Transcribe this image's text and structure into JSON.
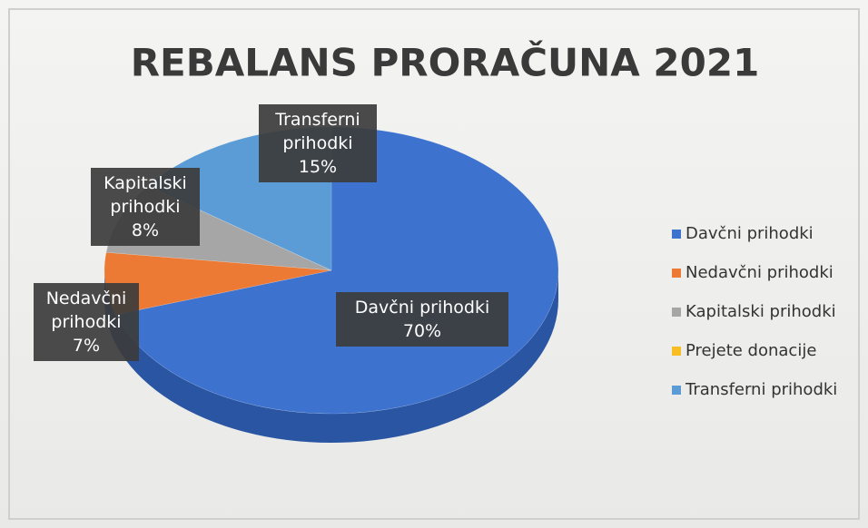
{
  "chart_data": {
    "type": "pie",
    "title": "REBALANS PRORAČUNA 2021",
    "categories": [
      "Davčni prihodki",
      "Nedavčni prihodki",
      "Kapitalski prihodki",
      "Prejete donacije",
      "Transferni prihodki"
    ],
    "values": [
      70,
      7,
      8,
      0,
      15
    ],
    "value_labels": [
      "70%",
      "7%",
      "8%",
      null,
      "15%"
    ],
    "colors": [
      "#3d72cf",
      "#ec7a34",
      "#a6a6a6",
      "#f8bd22",
      "#5b9cd6"
    ],
    "legend": "right"
  }
}
